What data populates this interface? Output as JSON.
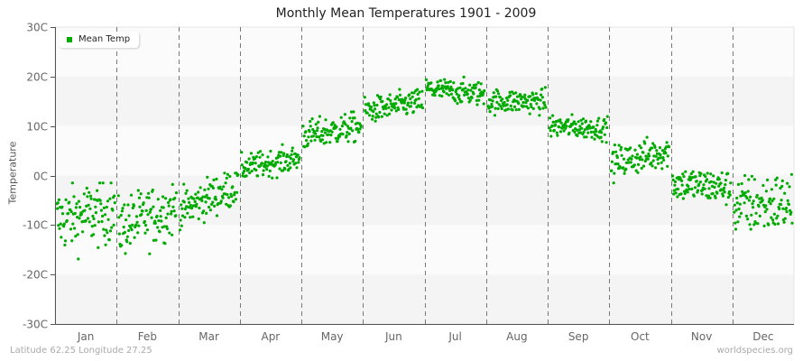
{
  "chart_data": {
    "type": "scatter",
    "title": "Monthly Mean Temperatures 1901 - 2009",
    "xlabel": "",
    "ylabel": "Temperature",
    "ylim": [
      -30,
      30
    ],
    "yticks": [
      30,
      20,
      10,
      0,
      -10,
      -20,
      -30
    ],
    "ytick_labels": [
      "30C",
      "20C",
      "10C",
      "0C",
      "-10C",
      "-20C",
      "-30C"
    ],
    "categories": [
      "Jan",
      "Feb",
      "Mar",
      "Apr",
      "May",
      "Jun",
      "Jul",
      "Aug",
      "Sep",
      "Oct",
      "Nov",
      "Dec"
    ],
    "points_per_month": 109,
    "years": [
      1901,
      2009
    ],
    "grid": {
      "horizontal_bands": true,
      "vertical_dashed_month_separators": true
    },
    "legend": {
      "position": "top-left",
      "entries": [
        "Mean Temp"
      ]
    },
    "series": [
      {
        "name": "Mean Temp",
        "color": "#00aa00",
        "monthly_summary": [
          {
            "month": "Jan",
            "mean": -8.5,
            "min": -20.3,
            "max": -1.5,
            "start_trend": -9.0,
            "end_trend": -7.0
          },
          {
            "month": "Feb",
            "mean": -9.0,
            "min": -17.5,
            "max": -0.5,
            "start_trend": -10.5,
            "end_trend": -6.5
          },
          {
            "month": "Mar",
            "mean": -4.5,
            "min": -11.0,
            "max": 0.5,
            "start_trend": -7.0,
            "end_trend": -2.0
          },
          {
            "month": "Apr",
            "mean": 2.5,
            "min": -0.5,
            "max": 7.0,
            "start_trend": 1.5,
            "end_trend": 3.5
          },
          {
            "month": "May",
            "mean": 9.0,
            "min": 4.5,
            "max": 13.0,
            "start_trend": 8.0,
            "end_trend": 10.0
          },
          {
            "month": "Jun",
            "mean": 14.0,
            "min": 10.5,
            "max": 18.0,
            "start_trend": 13.0,
            "end_trend": 15.0
          },
          {
            "month": "Jul",
            "mean": 17.0,
            "min": 13.5,
            "max": 20.5,
            "start_trend": 17.5,
            "end_trend": 16.5
          },
          {
            "month": "Aug",
            "mean": 15.0,
            "min": 11.5,
            "max": 18.5,
            "start_trend": 15.0,
            "end_trend": 15.0
          },
          {
            "month": "Sep",
            "mean": 9.5,
            "min": 6.0,
            "max": 12.5,
            "start_trend": 10.0,
            "end_trend": 9.5
          },
          {
            "month": "Oct",
            "mean": 3.5,
            "min": -1.5,
            "max": 8.0,
            "start_trend": 2.5,
            "end_trend": 5.0
          },
          {
            "month": "Nov",
            "mean": -2.0,
            "min": -7.0,
            "max": 3.0,
            "start_trend": -1.5,
            "end_trend": -2.5
          },
          {
            "month": "Dec",
            "mean": -6.0,
            "min": -16.5,
            "max": 1.0,
            "start_trend": -6.0,
            "end_trend": -5.5
          }
        ]
      }
    ]
  },
  "header": {
    "title": "Monthly Mean Temperatures 1901 - 2009"
  },
  "axis": {
    "ylabel": "Temperature"
  },
  "legend": {
    "label": "Mean Temp",
    "color": "#00aa00"
  },
  "footer": {
    "location": "Latitude 62.25 Longitude 27.25",
    "source": "worldspecies.org"
  }
}
